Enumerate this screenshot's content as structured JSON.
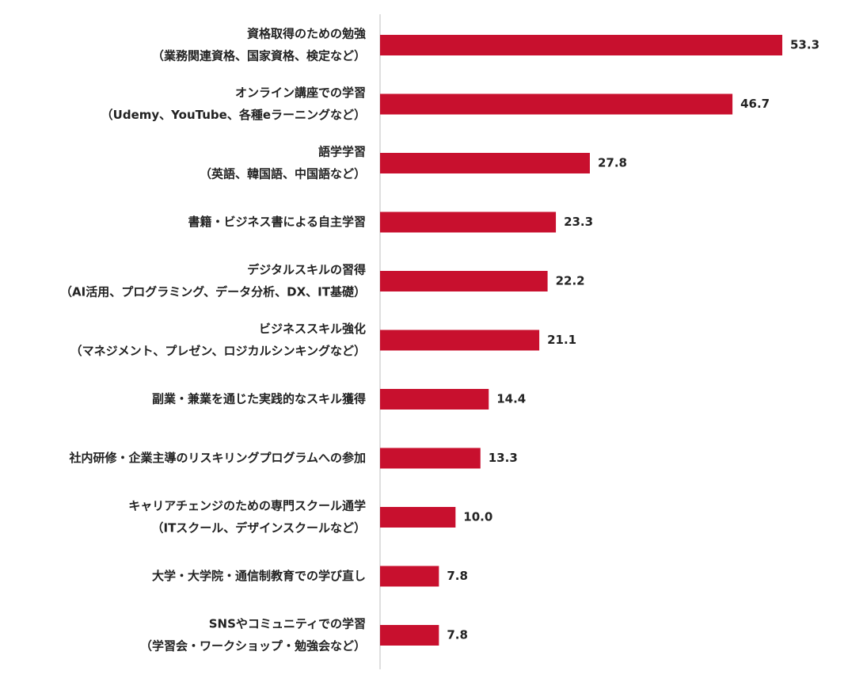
{
  "chart_data": {
    "type": "bar",
    "orientation": "horizontal",
    "categories": [
      [
        "資格取得のための勉強",
        "（業務関連資格、国家資格、検定など）"
      ],
      [
        "オンライン講座での学習",
        "（Udemy、YouTube、各種eラーニングなど）"
      ],
      [
        "語学学習",
        "（英語、韓国語、中国語など）"
      ],
      [
        "書籍・ビジネス書による自主学習"
      ],
      [
        "デジタルスキルの習得",
        "（AI活用、プログラミング、データ分析、DX、IT基礎）"
      ],
      [
        "ビジネススキル強化",
        "（マネジメント、プレゼン、ロジカルシンキングなど）"
      ],
      [
        "副業・兼業を通じた実践的なスキル獲得"
      ],
      [
        "社内研修・企業主導のリスキリングプログラムへの参加"
      ],
      [
        "キャリアチェンジのための専門スクール通学",
        "（ITスクール、デザインスクールなど）"
      ],
      [
        "大学・大学院・通信制教育での学び直し"
      ],
      [
        "SNSやコミュニティでの学習",
        "（学習会・ワークショップ・勉強会など）"
      ]
    ],
    "values": [
      53.3,
      46.7,
      27.8,
      23.3,
      22.2,
      21.1,
      14.4,
      13.3,
      10.0,
      7.8,
      7.8
    ],
    "value_labels": [
      "53.3",
      "46.7",
      "27.8",
      "23.3",
      "22.2",
      "21.1",
      "14.4",
      "13.3",
      "10.0",
      "7.8",
      "7.8"
    ],
    "bar_color": "#c8102e",
    "xlim": [
      0,
      53.3
    ],
    "grid": false,
    "legend": "none"
  }
}
